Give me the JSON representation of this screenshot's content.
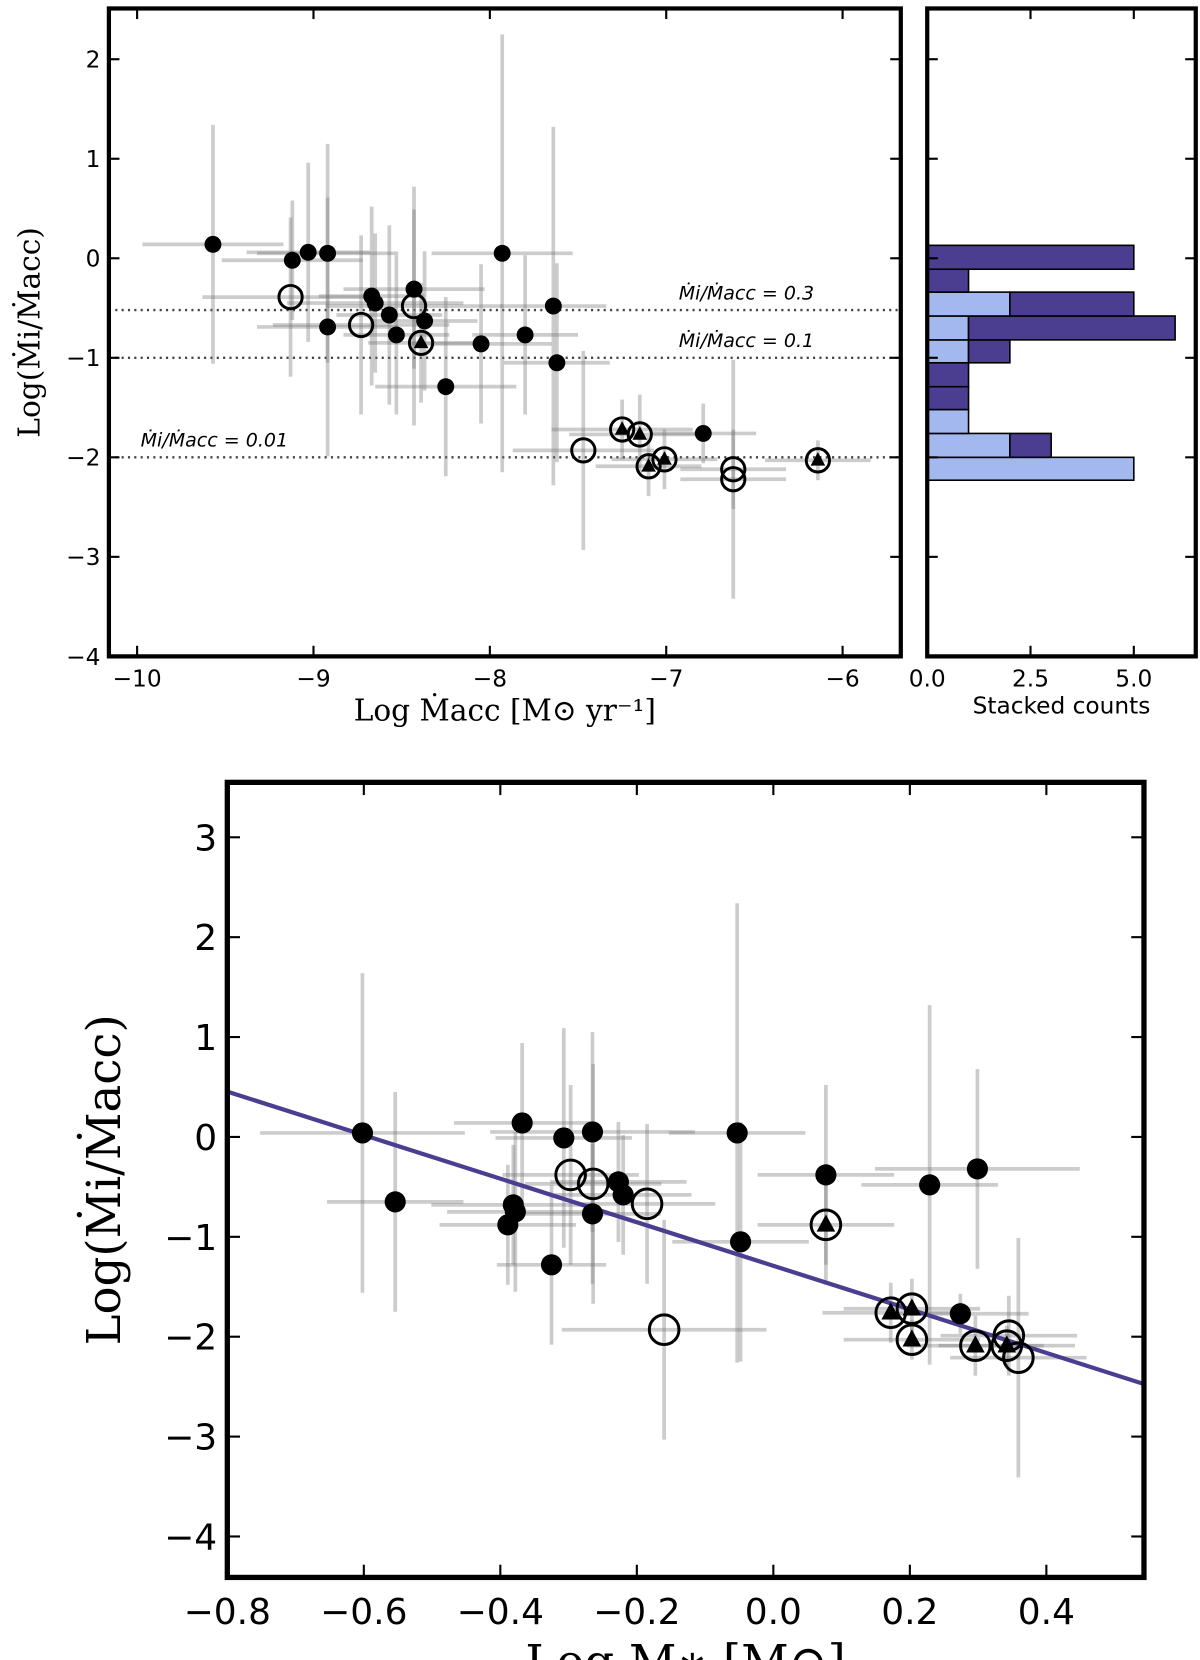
{
  "chart_data": [
    {
      "type": "scatter",
      "xlabel": "Log Ṁacc [M⊙ yr⁻¹]",
      "ylabel": "Log(Ṁi/Ṁacc)",
      "xlim": [
        -10.16,
        -5.67
      ],
      "ylim": [
        -4,
        2.51
      ],
      "xticks": [
        {
          "value": -10,
          "label": "−10"
        },
        {
          "value": -9,
          "label": "−9"
        },
        {
          "value": -8,
          "label": "−8"
        },
        {
          "value": -7,
          "label": "−7"
        },
        {
          "value": -6,
          "label": "−6"
        }
      ],
      "yticks": [
        2,
        1,
        0,
        {
          "value": -1,
          "label": "−1"
        },
        {
          "value": -2,
          "label": "−2"
        },
        {
          "value": -3,
          "label": "−3"
        },
        {
          "value": -4,
          "label": "−4"
        }
      ],
      "hlines": [
        {
          "value": -0.52,
          "label": "Ṁi/Ṁacc = 0.3"
        },
        {
          "value": -1,
          "label": "Ṁi/Ṁacc = 0.1"
        },
        {
          "value": -2,
          "label": "Ṁi/Ṁacc = 0.01"
        }
      ],
      "series": [
        {
          "marker": "filled",
          "color": "#000000",
          "x": [
            -9.57,
            -9.12,
            -9.03,
            -8.92,
            -8.92,
            -8.67,
            -8.65,
            -8.57,
            -8.53,
            -8.43,
            -8.37,
            -8.25,
            -8.05,
            -7.93,
            -7.8,
            -7.64,
            -7.62,
            -6.79
          ],
          "values": [
            0.14,
            -0.02,
            0.06,
            0.05,
            -0.69,
            -0.38,
            -0.45,
            -0.57,
            -0.77,
            -0.31,
            -0.63,
            -1.29,
            -0.86,
            0.05,
            -0.77,
            -0.48,
            -1.05,
            -1.76
          ],
          "xerr": [
            0.4,
            0.4,
            0.35,
            0.4,
            0.4,
            0.3,
            0.5,
            0.3,
            0.3,
            0.4,
            0.3,
            0.4,
            0.4,
            0.4,
            0.3,
            0.3,
            0.3,
            0.3
          ],
          "yerr": [
            1.2,
            0.6,
            0.9,
            1.1,
            1.3,
            0.9,
            0.7,
            0.9,
            0.8,
            0.8,
            0.7,
            0.9,
            0.8,
            2.2,
            0.8,
            1.8,
            1.0,
            0.3
          ]
        },
        {
          "marker": "open",
          "color": "#000000",
          "x": [
            -9.13,
            -8.73,
            -8.43,
            -7.47,
            -6.62,
            -6.62
          ],
          "values": [
            -0.39,
            -0.67,
            -0.48,
            -1.93,
            -2.12,
            -2.22
          ],
          "xerr": [
            0.5,
            0.5,
            0.5,
            0.4,
            0.3,
            0.3
          ],
          "yerr": [
            0.8,
            0.9,
            1.2,
            1.0,
            0.4,
            1.2
          ]
        },
        {
          "marker": "open-triangle",
          "color": "#000000",
          "x": [
            -8.39,
            -7.25,
            -7.15,
            -7.1,
            -7.01,
            -6.14
          ],
          "values": [
            -0.85,
            -1.72,
            -1.77,
            -2.09,
            -2.02,
            -2.03
          ],
          "xerr": [
            0.3,
            0.4,
            0.4,
            0.3,
            0.3,
            0.3
          ],
          "yerr": [
            0.6,
            0.3,
            0.4,
            0.3,
            0.3,
            0.2
          ]
        }
      ]
    },
    {
      "type": "histogram",
      "orientation": "horizontal",
      "stacked": true,
      "xlabel": "Stacked counts",
      "xlim": [
        0,
        6.5
      ],
      "ylim": [
        -4,
        2.51
      ],
      "xticks": [
        {
          "value": 0,
          "label": "0.0"
        },
        2.5,
        {
          "value": 5,
          "label": "5.0"
        }
      ],
      "bins": [
        -2.23,
        -2.0,
        -1.76,
        -1.52,
        -1.29,
        -1.05,
        -0.82,
        -0.58,
        -0.34,
        -0.11,
        0.13
      ],
      "series": [
        {
          "color": "#a4b8f0",
          "values": [
            5,
            2,
            1,
            0,
            0,
            1,
            1,
            2,
            0,
            0
          ]
        },
        {
          "color": "#4b3d8f",
          "values": [
            0,
            1,
            0,
            1,
            1,
            1,
            5,
            3,
            1,
            5
          ]
        }
      ]
    },
    {
      "type": "scatter",
      "xlabel": "Log M∗ [M⊙]",
      "ylabel": "Log(Ṁi/Ṁacc)",
      "xlim": [
        -0.8,
        0.543
      ],
      "ylim": [
        -4.41,
        3.55
      ],
      "xticks": [
        {
          "value": -0.8,
          "label": "−0.8"
        },
        {
          "value": -0.6,
          "label": "−0.6"
        },
        {
          "value": -0.4,
          "label": "−0.4"
        },
        {
          "value": -0.2,
          "label": "−0.2"
        },
        {
          "value": 0,
          "label": "0.0"
        },
        0.2,
        0.4
      ],
      "yticks": [
        3,
        2,
        1,
        0,
        {
          "value": -1,
          "label": "−1"
        },
        {
          "value": -2,
          "label": "−2"
        },
        {
          "value": -3,
          "label": "−3"
        },
        {
          "value": -4,
          "label": "−4"
        }
      ],
      "fit": {
        "slope": -2.18,
        "intercept": -1.29,
        "color": "#4b3d8f"
      },
      "series": [
        {
          "marker": "filled",
          "color": "#000000",
          "x": [
            -0.602,
            -0.554,
            -0.368,
            -0.381,
            -0.378,
            -0.389,
            -0.325,
            -0.307,
            -0.265,
            -0.265,
            -0.227,
            -0.22,
            -0.053,
            -0.048,
            0.077,
            0.229,
            0.299,
            0.274
          ],
          "values": [
            0.04,
            -0.65,
            0.14,
            -0.68,
            -0.75,
            -0.88,
            -1.28,
            -0.01,
            0.05,
            -0.77,
            -0.45,
            -0.58,
            0.04,
            -1.05,
            -0.38,
            -0.48,
            -0.32,
            -1.77
          ],
          "xerr": [
            0.15,
            0.1,
            0.1,
            0.12,
            0.1,
            0.1,
            0.08,
            0.1,
            0.15,
            0.1,
            0.1,
            0.1,
            0.1,
            0.1,
            0.1,
            0.1,
            0.15,
            0.1
          ],
          "yerr": [
            1.6,
            1.1,
            0.8,
            0.6,
            0.8,
            0.6,
            0.8,
            1.1,
            1.0,
            0.7,
            0.6,
            0.6,
            2.3,
            1.2,
            0.9,
            1.8,
            1.0,
            0.2
          ]
        },
        {
          "marker": "open",
          "color": "#000000",
          "x": [
            -0.297,
            -0.264,
            -0.185,
            -0.16,
            0.345,
            0.359
          ],
          "values": [
            -0.38,
            -0.47,
            -0.67,
            -1.93,
            -1.99,
            -2.21
          ],
          "xerr": [
            0.1,
            0.1,
            0.1,
            0.15,
            0.1,
            0.1
          ],
          "yerr": [
            0.9,
            1.2,
            0.8,
            1.1,
            0.4,
            1.2
          ]
        },
        {
          "marker": "open-triangle",
          "color": "#000000",
          "x": [
            0.077,
            0.172,
            0.203,
            0.203,
            0.296,
            0.342
          ],
          "values": [
            -0.88,
            -1.76,
            -1.72,
            -2.03,
            -2.09,
            -2.09
          ],
          "xerr": [
            0.1,
            0.1,
            0.1,
            0.1,
            0.1,
            0.1
          ],
          "yerr": [
            0.6,
            0.3,
            0.3,
            0.2,
            0.3,
            0.2
          ]
        }
      ]
    }
  ]
}
